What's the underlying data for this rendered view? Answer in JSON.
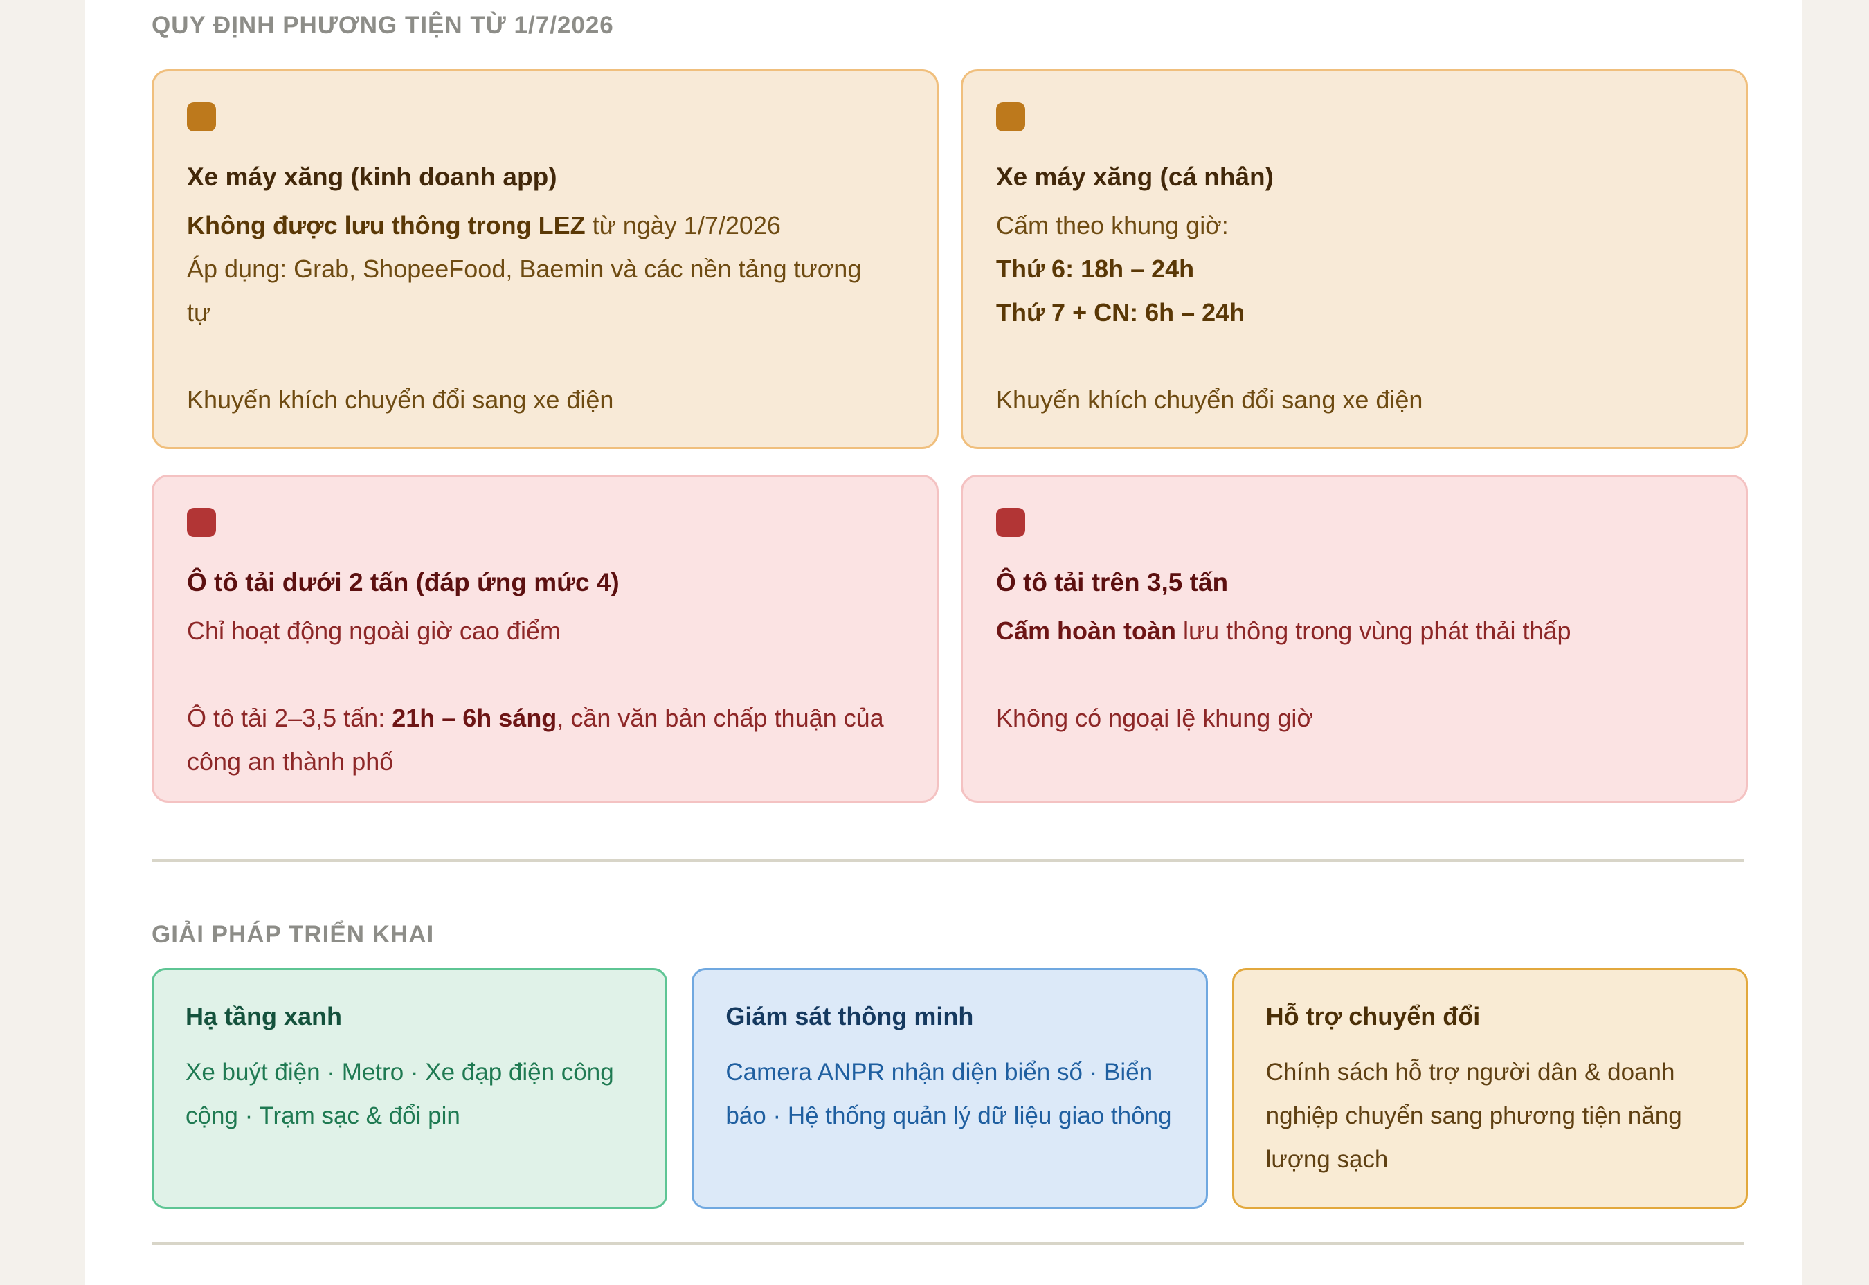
{
  "header": {
    "rules_section_title": "QUY ĐỊNH PHƯƠNG TIỆN TỪ 1/7/2026",
    "solutions_section_title": "GIẢI PHÁP TRIỂN KHAI"
  },
  "rule_cards": [
    {
      "theme": "amber",
      "icon": "amber-rounded-square",
      "title": "Xe máy xăng (kinh doanh app)",
      "paragraphs": [
        [
          {
            "t": "Không được lưu thông trong LEZ",
            "b": true
          },
          {
            "t": " từ ngày 1/7/2026"
          }
        ],
        [
          {
            "t": "Áp dụng: Grab, ShopeeFood, Baemin và các nền tảng tương tự"
          }
        ]
      ],
      "note": [
        {
          "t": "Khuyến khích chuyển đổi sang xe điện"
        }
      ]
    },
    {
      "theme": "amber",
      "icon": "amber-rounded-square",
      "title": "Xe máy xăng (cá nhân)",
      "paragraphs": [
        [
          {
            "t": "Cấm theo khung giờ:"
          }
        ],
        [
          {
            "t": "Thứ 6: 18h – 24h",
            "b": true
          }
        ],
        [
          {
            "t": "Thứ 7 + CN: 6h – 24h",
            "b": true
          }
        ]
      ],
      "note": [
        {
          "t": "Khuyến khích chuyển đổi sang xe điện"
        }
      ]
    },
    {
      "theme": "red",
      "icon": "red-rounded-square",
      "title": "Ô tô tải dưới 2 tấn (đáp ứng mức 4)",
      "paragraphs": [
        [
          {
            "t": "Chỉ hoạt động ngoài giờ cao điểm"
          }
        ]
      ],
      "note": [
        {
          "t": "Ô tô tải 2–3,5 tấn: "
        },
        {
          "t": "21h – 6h sáng",
          "b": true
        },
        {
          "t": ", cần văn bản chấp thuận của công an thành phố"
        }
      ]
    },
    {
      "theme": "red",
      "icon": "red-rounded-square",
      "title": "Ô tô tải trên 3,5 tấn",
      "paragraphs": [
        [
          {
            "t": "Cấm hoàn toàn",
            "b": true
          },
          {
            "t": " lưu thông trong vùng phát thải thấp"
          }
        ]
      ],
      "note": [
        {
          "t": "Không có ngoại lệ khung giờ"
        }
      ]
    }
  ],
  "solution_cards": [
    {
      "theme": "green",
      "title": "Hạ tầng xanh",
      "body": "Xe buýt điện · Metro · Xe đạp điện công cộng · Trạm sạc & đổi pin"
    },
    {
      "theme": "blue",
      "title": "Giám sát thông minh",
      "body": "Camera ANPR nhận diện biển số · Biển báo · Hệ thống quản lý dữ liệu giao thông"
    },
    {
      "theme": "gold",
      "title": "Hỗ trợ chuyển đổi",
      "body": "Chính sách hỗ trợ người dân & doanh nghiệp chuyển sang phương tiện năng lượng sạch"
    }
  ],
  "colors": {
    "page_margin_bg": "#f4f1ec",
    "content_bg": "#ffffff",
    "section_title": "#8d8d88",
    "divider": "#d8d5c8",
    "amber_bg": "#f8ead7",
    "amber_border": "#f0bf7d",
    "amber_icon": "#bd791c",
    "amber_title": "#42280a",
    "amber_text": "#6e4b12",
    "amber_bold": "#5a3806",
    "red_bg": "#fbe3e3",
    "red_border": "#f4c2c2",
    "red_icon": "#b23535",
    "red_title": "#5c1010",
    "red_text": "#8d2727",
    "red_bold": "#6d1515",
    "green_bg": "#e0f2e8",
    "green_border": "#5ec594",
    "green_title": "#14523c",
    "green_text": "#1f7a52",
    "blue_bg": "#dce9f8",
    "blue_border": "#70a8e0",
    "blue_title": "#15395f",
    "blue_text": "#1f5fa0",
    "gold_bg": "#f9ebd4",
    "gold_border": "#e2a83d",
    "gold_title": "#4a2e06",
    "gold_text": "#5f4012"
  }
}
